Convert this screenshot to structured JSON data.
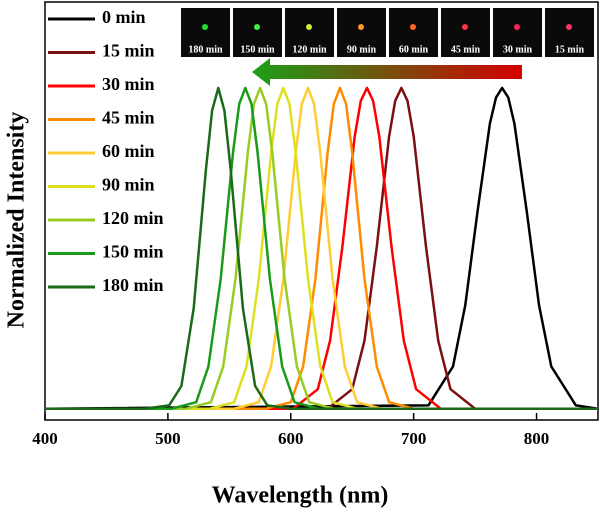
{
  "chart_data": {
    "type": "line",
    "xlabel": "Wavelength (nm)",
    "ylabel": "Normalized Intensity",
    "xlim": [
      400,
      850
    ],
    "xticks": [
      400,
      500,
      600,
      700,
      800
    ],
    "ylim": [
      -0.025,
      1.265
    ],
    "legend": "top-left",
    "inset_labels": [
      "180 min",
      "150 min",
      "120 min",
      "90 min",
      "60 min",
      "45 min",
      "30 min",
      "15 min"
    ],
    "series": [
      {
        "name": "0 min",
        "color": "#000000",
        "x": [
          400,
          712,
          732,
          742,
          752,
          762,
          767,
          772,
          777,
          782,
          792,
          802,
          812,
          832,
          850
        ],
        "values": [
          0.01,
          0.02,
          0.14,
          0.33,
          0.62,
          0.89,
          0.97,
          1,
          0.97,
          0.89,
          0.62,
          0.33,
          0.14,
          0.02,
          0.01
        ]
      },
      {
        "name": "15 min",
        "color": "#7a1010",
        "x": [
          400,
          630,
          650,
          660,
          670,
          680,
          685,
          690,
          695,
          700,
          710,
          720,
          730,
          750,
          850
        ],
        "values": [
          0.01,
          0.01,
          0.07,
          0.22,
          0.51,
          0.85,
          0.96,
          1,
          0.96,
          0.85,
          0.51,
          0.22,
          0.07,
          0.01,
          0.01
        ]
      },
      {
        "name": "30 min",
        "color": "#ff0000",
        "x": [
          400,
          602,
          622,
          632,
          642,
          652,
          657,
          662,
          667,
          672,
          682,
          692,
          702,
          722,
          850
        ],
        "values": [
          0.01,
          0.01,
          0.07,
          0.22,
          0.51,
          0.85,
          0.96,
          1,
          0.96,
          0.85,
          0.51,
          0.22,
          0.07,
          0.01,
          0.01
        ]
      },
      {
        "name": "45 min",
        "color": "#ff8c00",
        "x": [
          400,
          580,
          600,
          610,
          620,
          630,
          635,
          640,
          645,
          650,
          660,
          670,
          680,
          700,
          850
        ],
        "values": [
          0.01,
          0.01,
          0.03,
          0.14,
          0.41,
          0.8,
          0.95,
          1,
          0.95,
          0.8,
          0.41,
          0.14,
          0.03,
          0.01,
          0.01
        ]
      },
      {
        "name": "60 min",
        "color": "#ffcc33",
        "x": [
          400,
          554,
          574,
          584,
          594,
          604,
          609,
          614,
          619,
          624,
          634,
          644,
          654,
          674,
          850
        ],
        "values": [
          0.01,
          0.01,
          0.03,
          0.14,
          0.41,
          0.8,
          0.95,
          1,
          0.95,
          0.8,
          0.41,
          0.14,
          0.03,
          0.01,
          0.01
        ]
      },
      {
        "name": "90 min",
        "color": "#dde020",
        "x": [
          400,
          534,
          554,
          564,
          574,
          584,
          589,
          594,
          599,
          604,
          614,
          624,
          634,
          654,
          850
        ],
        "values": [
          0.01,
          0.01,
          0.03,
          0.14,
          0.41,
          0.8,
          0.95,
          1,
          0.95,
          0.8,
          0.41,
          0.14,
          0.03,
          0.01,
          0.01
        ]
      },
      {
        "name": "120 min",
        "color": "#99cc22",
        "x": [
          400,
          515,
          535,
          545,
          555,
          565,
          570,
          575,
          580,
          585,
          595,
          605,
          615,
          635,
          850
        ],
        "values": [
          0.01,
          0.01,
          0.03,
          0.14,
          0.41,
          0.8,
          0.95,
          1,
          0.95,
          0.8,
          0.41,
          0.14,
          0.03,
          0.01,
          0.01
        ]
      },
      {
        "name": "150 min",
        "color": "#1a9a1a",
        "x": [
          400,
          503,
          523,
          533,
          543,
          553,
          558,
          563,
          568,
          573,
          583,
          593,
          603,
          623,
          850
        ],
        "values": [
          0.01,
          0.01,
          0.03,
          0.14,
          0.41,
          0.8,
          0.95,
          1,
          0.95,
          0.8,
          0.41,
          0.14,
          0.03,
          0.01,
          0.01
        ]
      },
      {
        "name": "180 min",
        "color": "#1a6a1a",
        "x": [
          400,
          481,
          501,
          511,
          521,
          531,
          536,
          541,
          546,
          551,
          561,
          571,
          581,
          601,
          850
        ],
        "values": [
          0.01,
          0.01,
          0.02,
          0.08,
          0.32,
          0.75,
          0.93,
          1,
          0.93,
          0.75,
          0.32,
          0.08,
          0.02,
          0.01,
          0.01
        ]
      }
    ]
  }
}
